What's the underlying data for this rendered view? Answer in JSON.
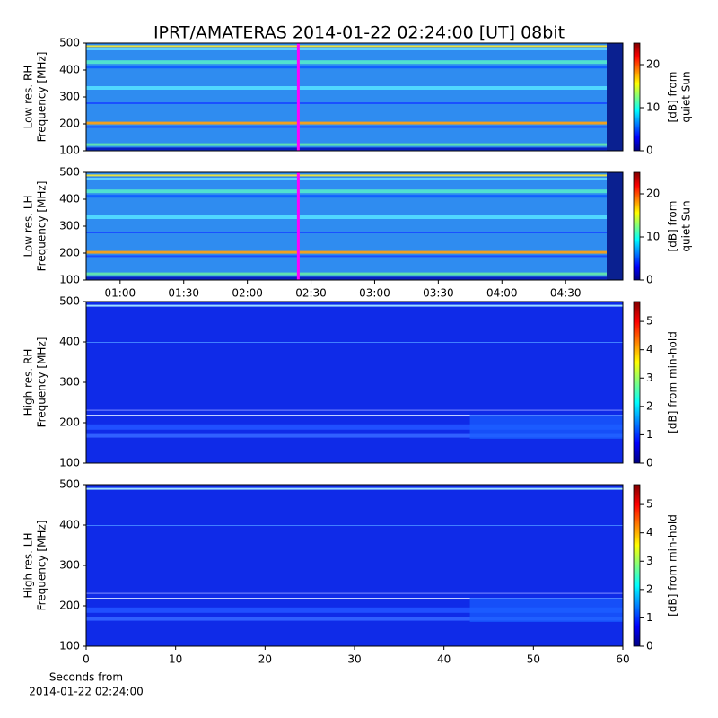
{
  "chart_data": [
    {
      "type": "spectrogram",
      "title": "IPRT/AMATERAS 2014-01-22 02:24:00 [UT]   08bit",
      "ylabel": [
        "Low res. RH",
        "Frequency [MHz]"
      ],
      "ylim": [
        100,
        500
      ],
      "yticks": [
        100,
        200,
        300,
        400,
        500
      ],
      "xlim": [
        44,
        297
      ],
      "marker_x": 144,
      "marker_color": "#ff00ff",
      "colormap": "jet",
      "clim": [
        0,
        25
      ],
      "cticks": [
        0,
        10,
        20
      ],
      "clabel": [
        "[dB] from",
        "quiet Sun"
      ]
    },
    {
      "type": "spectrogram",
      "ylabel": [
        "Low res. LH",
        "Frequency [MHz]"
      ],
      "ylim": [
        100,
        500
      ],
      "yticks": [
        100,
        200,
        300,
        400,
        500
      ],
      "xlim": [
        44,
        297
      ],
      "xticks": [
        {
          "value": 60,
          "label": "01:00"
        },
        {
          "value": 90,
          "label": "01:30"
        },
        {
          "value": 120,
          "label": "02:00"
        },
        {
          "value": 150,
          "label": "02:30"
        },
        {
          "value": 180,
          "label": "03:00"
        },
        {
          "value": 210,
          "label": "03:30"
        },
        {
          "value": 240,
          "label": "04:00"
        },
        {
          "value": 270,
          "label": "04:30"
        }
      ],
      "marker_x": 144,
      "marker_color": "#ff00ff",
      "colormap": "jet",
      "clim": [
        0,
        25
      ],
      "cticks": [
        0,
        10,
        20
      ],
      "clabel": [
        "[dB] from",
        "quiet Sun"
      ]
    },
    {
      "type": "spectrogram",
      "ylabel": [
        "High res. RH",
        "Frequency [MHz]"
      ],
      "ylim": [
        100,
        500
      ],
      "yticks": [
        100,
        200,
        300,
        400,
        500
      ],
      "xlim": [
        0,
        60
      ],
      "colormap": "jet",
      "clim": [
        0,
        5.7
      ],
      "cticks": [
        0,
        1,
        2,
        3,
        4,
        5
      ],
      "clabel": [
        "[dB] from min-hold"
      ]
    },
    {
      "type": "spectrogram",
      "ylabel": [
        "High res. LH",
        "Frequency [MHz]"
      ],
      "ylim": [
        100,
        500
      ],
      "yticks": [
        100,
        200,
        300,
        400,
        500
      ],
      "xlim": [
        0,
        60
      ],
      "xticks": [
        0,
        10,
        20,
        30,
        40,
        50,
        60
      ],
      "xlabel": [
        "Seconds from",
        "2014-01-22 02:24:00"
      ],
      "colormap": "jet",
      "clim": [
        0,
        5.7
      ],
      "cticks": [
        0,
        1,
        2,
        3,
        4,
        5
      ],
      "clabel": [
        "[dB] from min-hold"
      ]
    }
  ]
}
